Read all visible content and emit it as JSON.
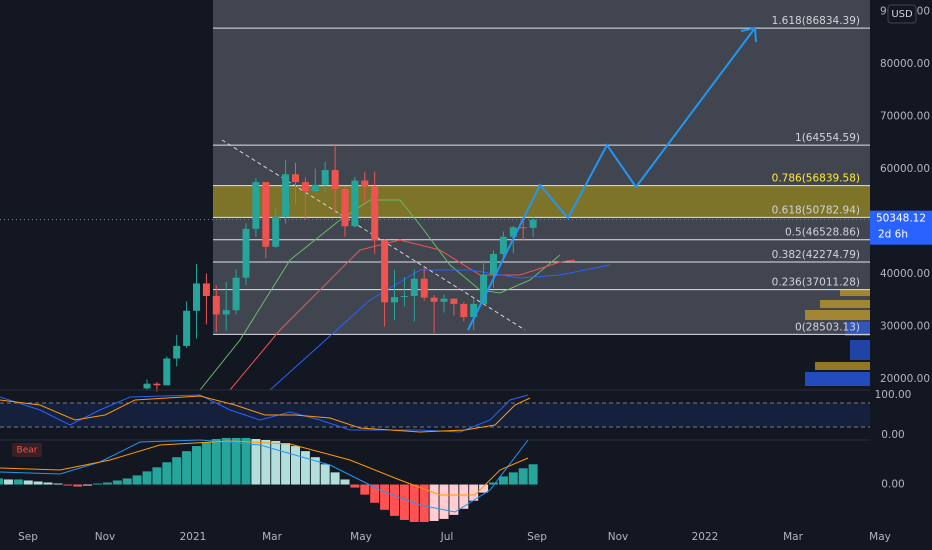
{
  "header": {
    "currency": "USD"
  },
  "chart_data": [
    {
      "type": "candlestick",
      "ylim": [
        17900,
        92200
      ],
      "yticks": [
        {
          "value": 20000,
          "label": "20000.00"
        },
        {
          "value": 30000,
          "label": "30000.00"
        },
        {
          "value": 40000,
          "label": "40000.00"
        },
        {
          "value": 50000,
          "label": "50000.00"
        },
        {
          "value": 60000,
          "label": "60000.00"
        },
        {
          "value": 70000,
          "label": "70000.00"
        },
        {
          "value": 80000,
          "label": "80000.00"
        },
        {
          "value": 90000,
          "label": "90000.00"
        }
      ],
      "x_axis_labels": [
        "Sep",
        "Nov",
        "2021",
        "Mar",
        "May",
        "Jul",
        "Sep",
        "Nov",
        "2022",
        "Mar",
        "May"
      ],
      "up_color": "#26a69a",
      "down_color": "#ef5350",
      "candles": {
        "open": [
          18200,
          19100,
          18800,
          23900,
          26300,
          33000,
          38200,
          35800,
          32300,
          33100,
          39300,
          48600,
          57500,
          45200,
          50900,
          59000,
          57500,
          55800,
          57000,
          59800,
          56200,
          49100,
          57800,
          56700,
          46400,
          34600,
          35600,
          35800,
          39100,
          35500,
          34700,
          35300,
          34300,
          31800,
          34300,
          39900,
          43800,
          47100,
          48900,
          48800
        ],
        "high": [
          19900,
          19400,
          24300,
          28400,
          34800,
          41900,
          40100,
          37800,
          38500,
          40900,
          49700,
          58300,
          57500,
          52600,
          61700,
          61200,
          58400,
          60100,
          61400,
          64800,
          56700,
          58500,
          59500,
          59500,
          46600,
          40800,
          39400,
          40900,
          41300,
          36000,
          36100,
          35300,
          34600,
          35400,
          42600,
          44500,
          48100,
          49200,
          50500,
          51000
        ],
        "low": [
          18000,
          17600,
          18800,
          22400,
          25900,
          27700,
          30400,
          28900,
          29200,
          32300,
          37900,
          47100,
          43000,
          44900,
          49600,
          53300,
          50400,
          55700,
          55500,
          51500,
          47100,
          48800,
          53400,
          43800,
          30000,
          31200,
          33800,
          31000,
          34900,
          28800,
          32700,
          32100,
          31000,
          29300,
          34300,
          37400,
          42900,
          43900,
          46300,
          47000
        ],
        "close": [
          19100,
          18800,
          23900,
          26300,
          33000,
          38200,
          35800,
          32300,
          33100,
          39300,
          48600,
          57500,
          45200,
          50900,
          59000,
          57500,
          55800,
          57000,
          59800,
          56200,
          49100,
          57800,
          56700,
          46400,
          34600,
          35600,
          35800,
          39100,
          35500,
          34700,
          35300,
          34300,
          31800,
          34300,
          39900,
          43800,
          47100,
          48900,
          48800,
          50348.12
        ]
      },
      "fib_levels": [
        {
          "value": 86834.39,
          "label": "1.618(86834.39)"
        },
        {
          "value": 64554.59,
          "label": "1(64554.59)"
        },
        {
          "value": 56839.58,
          "label": "0.786(56839.58)",
          "color": "#ffeb3b",
          "fill": "#8a7c22"
        },
        {
          "value": 50782.94,
          "label": "0.618(50782.94)"
        },
        {
          "value": 46528.86,
          "label": "0.5(46528.86)"
        },
        {
          "value": 42274.79,
          "label": "0.382(42274.79)"
        },
        {
          "value": 37011.28,
          "label": "0.236(37011.28)"
        },
        {
          "value": 28503.13,
          "label": "0(28503.13)"
        }
      ],
      "last_price": {
        "value": 50348.12,
        "label": "50348.12",
        "countdown": "2d 6h",
        "color": "#2962ff"
      }
    },
    {
      "type": "oscillator",
      "ylim": [
        -12.5,
        112.5
      ],
      "yticks": [
        {
          "value": 0,
          "label": "0.00"
        },
        {
          "value": 100,
          "label": "100.00"
        }
      ],
      "band": [
        20,
        80
      ]
    },
    {
      "type": "histogram",
      "label": "Bear",
      "ylim": [
        -2000,
        2200
      ],
      "yticks": [
        {
          "value": 0,
          "label": "0.00"
        }
      ],
      "colors": {
        "up_rising": "#26a69a",
        "up_falling": "#b2dfdb",
        "down_falling": "#ff5252",
        "down_rising": "#ffcdd2"
      },
      "values": [
        300,
        250,
        250,
        200,
        150,
        100,
        50,
        -50,
        -100,
        -50,
        50,
        100,
        200,
        300,
        450,
        650,
        850,
        1100,
        1350,
        1650,
        1900,
        2100,
        2250,
        2300,
        2300,
        2300,
        2250,
        2200,
        2150,
        2050,
        1900,
        1650,
        1350,
        1000,
        600,
        250,
        -150,
        -500,
        -900,
        -1250,
        -1550,
        -1750,
        -1850,
        -1850,
        -1800,
        -1700,
        -1500,
        -1200,
        -800,
        -400,
        100,
        400,
        600,
        800,
        1000
      ]
    }
  ]
}
